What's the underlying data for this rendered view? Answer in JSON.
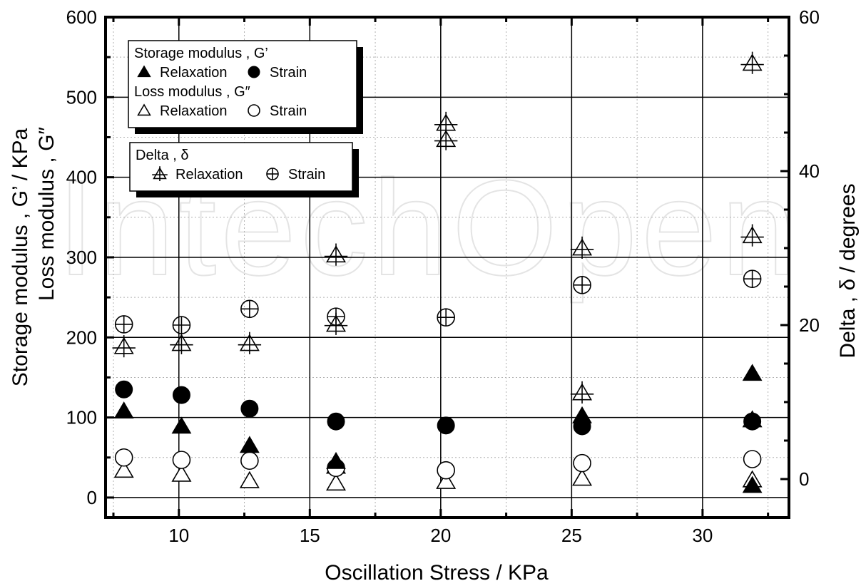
{
  "watermark": "IntechOpen",
  "chart_data": {
    "type": "scatter",
    "xlabel": "Oscillation  Stress   /  KPa",
    "ylabel_left_line1": "Storage modulus ,  G’   /  KPa",
    "ylabel_left_line2": "Loss modulus , G″",
    "ylabel_right": "Delta ,  δ   /  degrees",
    "xlim": [
      7.2,
      33.3
    ],
    "ylim_left": [
      -25,
      600
    ],
    "ylim_right": [
      -5,
      60
    ],
    "x_ticks": [
      10,
      15,
      20,
      25,
      30
    ],
    "y_left_ticks": [
      0,
      100,
      200,
      300,
      400,
      500,
      600
    ],
    "y_right_ticks": [
      0,
      20,
      40,
      60
    ],
    "grid": true,
    "legends": [
      {
        "position": "top-left",
        "rows": [
          {
            "header": "Storage modulus ,  G’"
          },
          {
            "items": [
              {
                "marker": "filled-triangle",
                "label": "Relaxation"
              },
              {
                "marker": "filled-circle",
                "label": "Strain"
              }
            ]
          },
          {
            "header": "Loss modulus ,  G″"
          },
          {
            "items": [
              {
                "marker": "open-triangle",
                "label": "Relaxation"
              },
              {
                "marker": "open-circle",
                "label": "Strain"
              }
            ]
          }
        ]
      },
      {
        "position": "top-left",
        "rows": [
          {
            "header": "Delta ,  δ"
          },
          {
            "items": [
              {
                "marker": "crossed-triangle",
                "label": "Relaxation"
              },
              {
                "marker": "crossed-circle",
                "label": "Strain"
              }
            ]
          }
        ]
      }
    ],
    "series": [
      {
        "group": "Storage modulus G'",
        "name": "Relaxation",
        "marker": "filled-triangle",
        "axis": "left",
        "x": [
          7.9,
          10.1,
          12.7,
          16.0,
          25.4,
          31.9,
          31.9
        ],
        "y": [
          108,
          89,
          65,
          45,
          102,
          155,
          15
        ]
      },
      {
        "group": "Storage modulus G'",
        "name": "Strain",
        "marker": "filled-circle",
        "axis": "left",
        "x": [
          7.9,
          10.1,
          12.7,
          16.0,
          20.2,
          25.4,
          31.9
        ],
        "y": [
          135,
          128,
          111,
          95,
          90,
          89,
          95
        ]
      },
      {
        "group": "Loss modulus G\"",
        "name": "Relaxation",
        "marker": "open-triangle",
        "axis": "left",
        "x": [
          7.9,
          10.1,
          12.7,
          16.0,
          16.0,
          20.2,
          25.4,
          31.9,
          31.9
        ],
        "y": [
          34,
          29,
          21,
          39,
          18,
          20,
          24,
          97,
          22
        ]
      },
      {
        "group": "Loss modulus G\"",
        "name": "Strain",
        "marker": "open-circle",
        "axis": "left",
        "x": [
          7.9,
          10.1,
          12.7,
          16.0,
          20.2,
          25.4,
          31.9
        ],
        "y": [
          50,
          47,
          46,
          37,
          34,
          43,
          48
        ]
      },
      {
        "group": "Delta δ",
        "name": "Relaxation",
        "marker": "crossed-triangle",
        "axis": "right",
        "x": [
          7.9,
          10.1,
          12.7,
          16.0,
          16.0,
          20.2,
          20.2,
          25.4,
          25.4,
          31.9,
          31.9
        ],
        "y": [
          17.2,
          17.6,
          17.6,
          20.1,
          29.1,
          44.1,
          46.2,
          30.0,
          11.2,
          31.6,
          54.0
        ]
      },
      {
        "group": "Delta δ",
        "name": "Strain",
        "marker": "crossed-circle",
        "axis": "right",
        "x": [
          7.9,
          10.1,
          12.7,
          16.0,
          20.2,
          25.4,
          31.9
        ],
        "y": [
          20.1,
          20.0,
          22.1,
          21.1,
          21.0,
          25.2,
          26.0
        ]
      }
    ]
  }
}
